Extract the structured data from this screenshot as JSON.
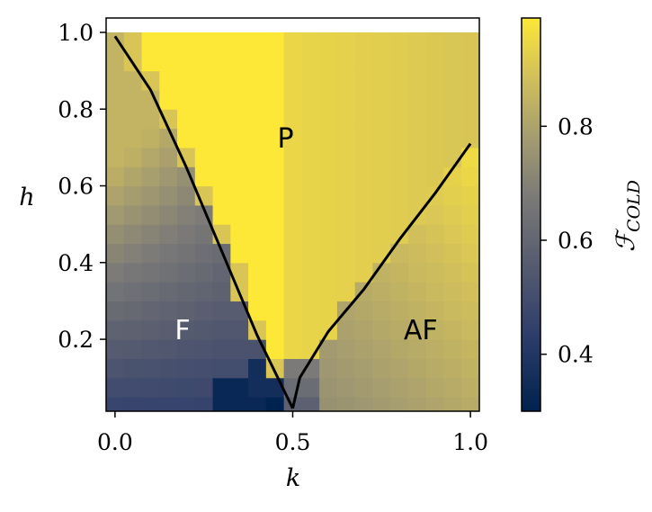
{
  "chart_data": {
    "type": "heatmap",
    "title": "",
    "xlabel": "k",
    "ylabel": "h",
    "xlim": [
      -0.025,
      1.025
    ],
    "ylim": [
      0.0125,
      1.0375
    ],
    "xticks": [
      "0.0",
      "0.5",
      "1.0"
    ],
    "yticks": [
      "0.2",
      "0.4",
      "0.6",
      "0.8",
      "1.0"
    ],
    "grid": false,
    "colormap": "cividis",
    "colors": {
      "low": "#00224e",
      "mid": "#7c7b78",
      "high": "#fde737",
      "line": "#000000"
    },
    "colorbar": {
      "label": "F_COLD",
      "label_main": "ℱ",
      "label_sub": "COLD",
      "range": [
        0.3,
        0.99
      ],
      "ticks": [
        "0.4",
        "0.6",
        "0.8"
      ]
    },
    "regions": [
      {
        "label": "P",
        "k": 0.48,
        "h": 0.72,
        "color": "#000000"
      },
      {
        "label": "F",
        "k": 0.19,
        "h": 0.22,
        "color": "#ffffff"
      },
      {
        "label": "AF",
        "k": 0.86,
        "h": 0.22,
        "color": "#000000"
      }
    ],
    "boundary_lines": [
      {
        "name": "F-P boundary",
        "k": [
          0.0,
          0.1,
          0.2,
          0.3,
          0.4,
          0.5
        ],
        "h": [
          0.99,
          0.85,
          0.65,
          0.43,
          0.21,
          0.02
        ]
      },
      {
        "name": "AF-P boundary",
        "k": [
          0.5,
          0.52,
          0.6,
          0.7,
          0.8,
          0.9,
          1.0
        ],
        "h": [
          0.02,
          0.1,
          0.22,
          0.33,
          0.46,
          0.58,
          0.71
        ]
      }
    ]
  }
}
